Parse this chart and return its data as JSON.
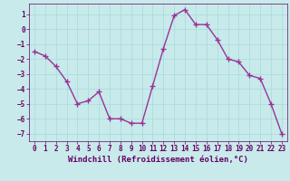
{
  "x": [
    0,
    1,
    2,
    3,
    4,
    5,
    6,
    7,
    8,
    9,
    10,
    11,
    12,
    13,
    14,
    15,
    16,
    17,
    18,
    19,
    20,
    21,
    22,
    23
  ],
  "y": [
    -1.5,
    -1.8,
    -2.5,
    -3.5,
    -5.0,
    -4.8,
    -4.2,
    -6.0,
    -6.0,
    -6.3,
    -6.3,
    -3.8,
    -1.3,
    0.9,
    1.3,
    0.3,
    0.3,
    -0.7,
    -2.0,
    -2.2,
    -3.1,
    -3.3,
    -5.0,
    -7.0
  ],
  "line_color": "#993399",
  "marker": "+",
  "marker_size": 4,
  "marker_linewidth": 1.0,
  "bg_color": "#c8eaea",
  "grid_color": "#aadddd",
  "xlabel": "Windchill (Refroidissement éolien,°C)",
  "xlim": [
    -0.5,
    23.5
  ],
  "ylim": [
    -7.5,
    1.7
  ],
  "yticks": [
    -7,
    -6,
    -5,
    -4,
    -3,
    -2,
    -1,
    0,
    1
  ],
  "xticks": [
    0,
    1,
    2,
    3,
    4,
    5,
    6,
    7,
    8,
    9,
    10,
    11,
    12,
    13,
    14,
    15,
    16,
    17,
    18,
    19,
    20,
    21,
    22,
    23
  ],
  "tick_fontsize": 5.5,
  "xlabel_fontsize": 6.5,
  "line_width": 1.0,
  "text_color": "#660066"
}
